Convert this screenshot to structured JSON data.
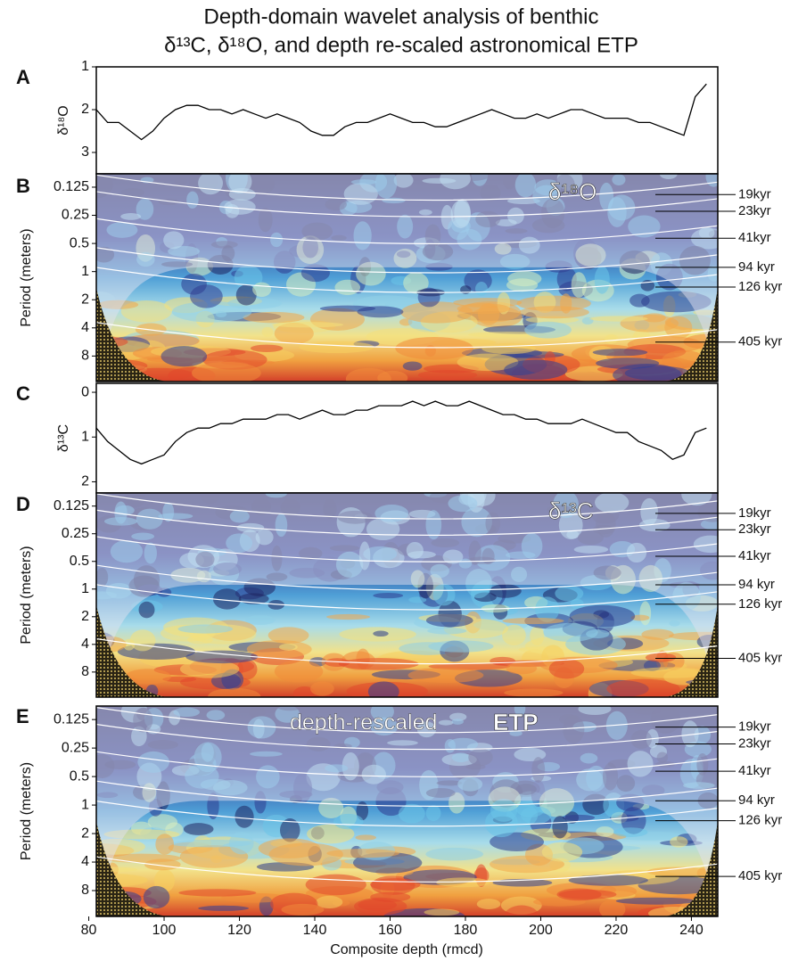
{
  "title": [
    "Depth-domain wavelet analysis of benthic",
    "δ¹³C, δ¹⁸O, and depth re-scaled astronomical ETP"
  ],
  "x_axis": {
    "label": "Composite depth (rmcd)",
    "xlim": [
      82,
      247
    ],
    "xticks": [
      80,
      100,
      120,
      140,
      160,
      180,
      200,
      220,
      240
    ]
  },
  "chart_data": [
    {
      "type": "line",
      "panel": "A",
      "ylabel": "δ¹⁸O",
      "color": "#000000",
      "ylim": [
        3.5,
        1
      ],
      "yticks": [
        1,
        2,
        3
      ],
      "x": [
        82,
        85,
        88,
        91,
        94,
        97,
        100,
        103,
        106,
        109,
        112,
        115,
        118,
        121,
        124,
        127,
        130,
        133,
        136,
        139,
        142,
        145,
        148,
        151,
        154,
        157,
        160,
        163,
        166,
        169,
        172,
        175,
        178,
        181,
        184,
        187,
        190,
        193,
        196,
        199,
        202,
        205,
        208,
        211,
        214,
        217,
        220,
        223,
        226,
        229,
        232,
        235,
        238,
        241,
        244
      ],
      "values": [
        2.0,
        2.3,
        2.3,
        2.5,
        2.7,
        2.5,
        2.2,
        2.0,
        1.9,
        1.9,
        2.0,
        2.0,
        2.1,
        2.0,
        2.1,
        2.2,
        2.1,
        2.2,
        2.3,
        2.5,
        2.6,
        2.6,
        2.4,
        2.3,
        2.3,
        2.2,
        2.1,
        2.2,
        2.3,
        2.3,
        2.4,
        2.4,
        2.3,
        2.2,
        2.1,
        2.0,
        2.1,
        2.2,
        2.2,
        2.1,
        2.2,
        2.1,
        2.0,
        2.0,
        2.1,
        2.2,
        2.2,
        2.2,
        2.3,
        2.3,
        2.4,
        2.5,
        2.6,
        1.7,
        1.4
      ]
    },
    {
      "type": "wavelet",
      "panel": "B",
      "tag": [
        "δ¹⁸O"
      ],
      "ylabel": "Period (meters)",
      "yscale": "log",
      "ylim": [
        15,
        0.09
      ],
      "yticks": [
        0.125,
        0.25,
        0.5,
        1,
        2,
        4,
        8
      ],
      "annotations": [
        "19kyr",
        "23kyr",
        "41kyr",
        "94 kyr",
        "126 kyr",
        "405 kyr"
      ]
    },
    {
      "type": "line",
      "panel": "C",
      "ylabel": "δ¹³C",
      "color": "#000000",
      "ylim": [
        2.25,
        -0.2
      ],
      "yticks": [
        0,
        1,
        2
      ],
      "x": [
        82,
        85,
        88,
        91,
        94,
        97,
        100,
        103,
        106,
        109,
        112,
        115,
        118,
        121,
        124,
        127,
        130,
        133,
        136,
        139,
        142,
        145,
        148,
        151,
        154,
        157,
        160,
        163,
        166,
        169,
        172,
        175,
        178,
        181,
        184,
        187,
        190,
        193,
        196,
        199,
        202,
        205,
        208,
        211,
        214,
        217,
        220,
        223,
        226,
        229,
        232,
        235,
        238,
        241,
        244
      ],
      "values": [
        0.8,
        1.1,
        1.3,
        1.5,
        1.6,
        1.5,
        1.4,
        1.1,
        0.9,
        0.8,
        0.8,
        0.7,
        0.7,
        0.6,
        0.6,
        0.6,
        0.5,
        0.5,
        0.6,
        0.5,
        0.4,
        0.5,
        0.5,
        0.4,
        0.4,
        0.3,
        0.3,
        0.3,
        0.2,
        0.3,
        0.2,
        0.3,
        0.3,
        0.2,
        0.3,
        0.4,
        0.5,
        0.5,
        0.6,
        0.6,
        0.7,
        0.7,
        0.7,
        0.6,
        0.7,
        0.8,
        0.9,
        0.9,
        1.1,
        1.2,
        1.3,
        1.5,
        1.4,
        0.9,
        0.8
      ]
    },
    {
      "type": "wavelet",
      "panel": "D",
      "tag": [
        "δ¹³C"
      ],
      "ylabel": "Period (meters)",
      "yscale": "log",
      "ylim": [
        15,
        0.09
      ],
      "yticks": [
        0.125,
        0.25,
        0.5,
        1,
        2,
        4,
        8
      ],
      "annotations": [
        "19kyr",
        "23kyr",
        "41kyr",
        "94 kyr",
        "126 kyr",
        "405 kyr"
      ]
    },
    {
      "type": "wavelet",
      "panel": "E",
      "tag": [
        "depth-rescaled",
        "ETP"
      ],
      "ylabel": "Period (meters)",
      "yscale": "log",
      "ylim": [
        15,
        0.09
      ],
      "yticks": [
        0.125,
        0.25,
        0.5,
        1,
        2,
        4,
        8
      ],
      "annotations": [
        "19kyr",
        "23kyr",
        "41kyr",
        "94 kyr",
        "126 kyr",
        "405 kyr"
      ]
    }
  ]
}
